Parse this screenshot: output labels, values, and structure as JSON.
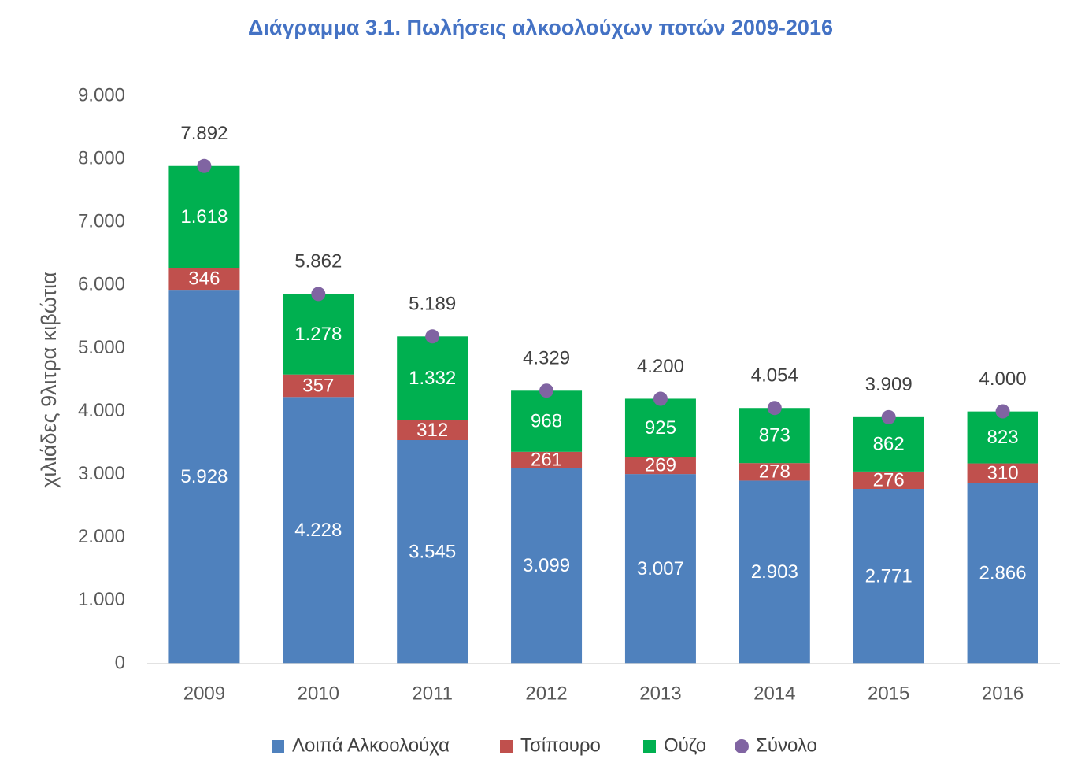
{
  "chart_data": {
    "type": "bar",
    "stacked": true,
    "title": "Διάγραμμα 3.1. Πωλήσεις αλκοολούχων ποτών 2009-2016",
    "ylabel": "χιλιάδες 9λιτρα κιβώτια",
    "xlabel": "",
    "ylim": [
      0,
      9000
    ],
    "yticks": [
      "0",
      "1.000",
      "2.000",
      "3.000",
      "4.000",
      "5.000",
      "6.000",
      "7.000",
      "8.000",
      "9.000"
    ],
    "ytick_values": [
      0,
      1000,
      2000,
      3000,
      4000,
      5000,
      6000,
      7000,
      8000,
      9000
    ],
    "grid": false,
    "legend_position": "bottom",
    "categories": [
      "2009",
      "2010",
      "2011",
      "2012",
      "2013",
      "2014",
      "2015",
      "2016"
    ],
    "series": [
      {
        "name": "Λοιπά Αλκοολούχα",
        "color": "#4F81BD",
        "values": [
          5928,
          4228,
          3545,
          3099,
          3007,
          2903,
          2771,
          2866
        ],
        "labels": [
          "5.928",
          "4.228",
          "3.545",
          "3.099",
          "3.007",
          "2.903",
          "2.771",
          "2.866"
        ]
      },
      {
        "name": "Τσίπουρο",
        "color": "#C0504D",
        "values": [
          346,
          357,
          312,
          261,
          269,
          278,
          276,
          310
        ],
        "labels": [
          "346",
          "357",
          "312",
          "261",
          "269",
          "278",
          "276",
          "310"
        ]
      },
      {
        "name": "Ούζο",
        "color": "#00B050",
        "values": [
          1618,
          1278,
          1332,
          968,
          925,
          873,
          862,
          823
        ],
        "labels": [
          "1.618",
          "1.278",
          "1.332",
          "968",
          "925",
          "873",
          "862",
          "823"
        ]
      }
    ],
    "total": {
      "name": "Σύνολο",
      "color": "#8064A2",
      "marker": "circle",
      "values": [
        7892,
        5862,
        5189,
        4329,
        4200,
        4054,
        3909,
        4000
      ],
      "labels": [
        "7.892",
        "5.862",
        "5.189",
        "4.329",
        "4.200",
        "4.054",
        "3.909",
        "4.000"
      ]
    }
  }
}
